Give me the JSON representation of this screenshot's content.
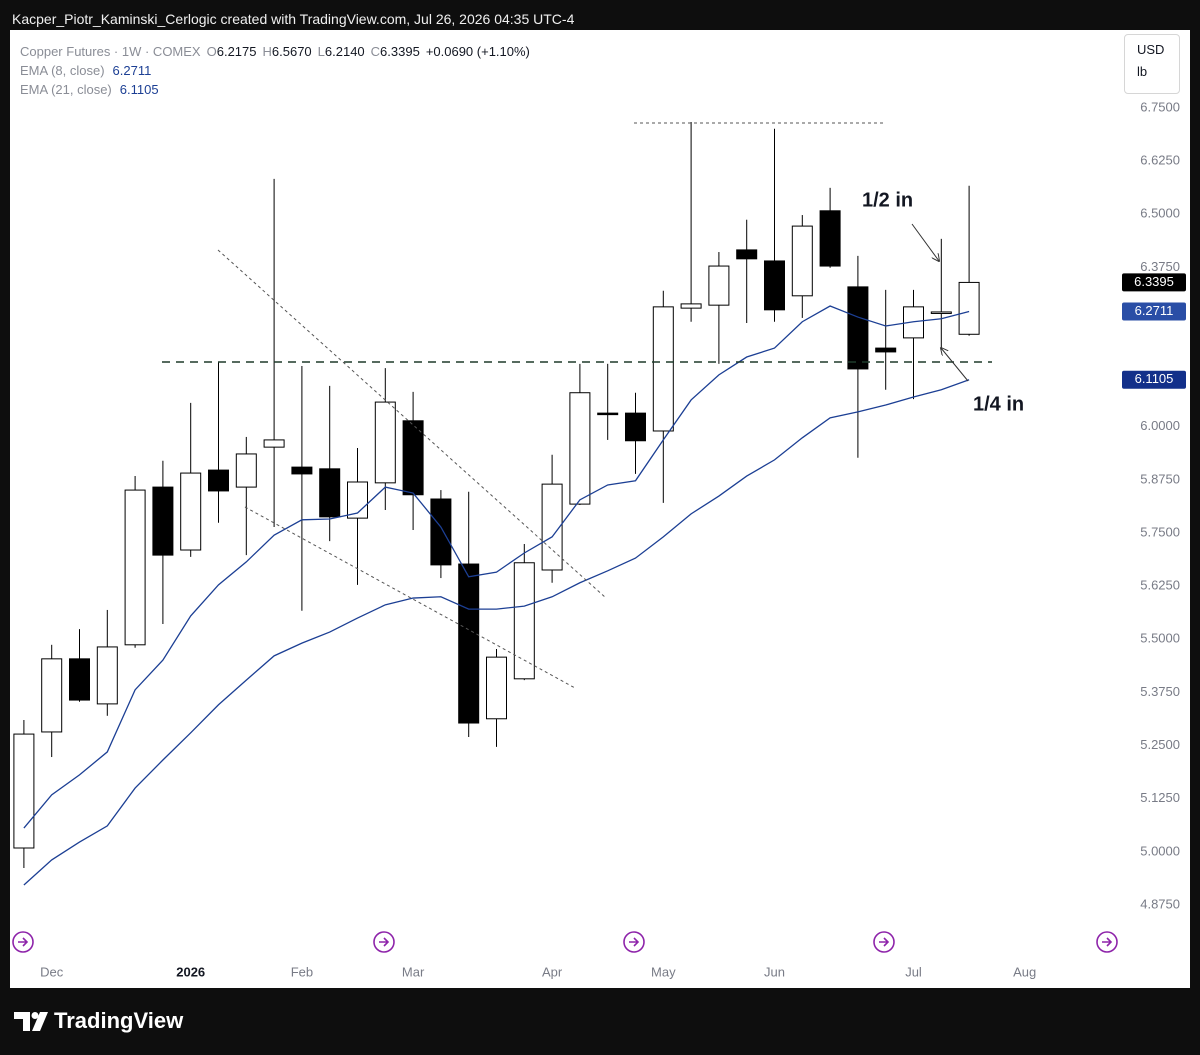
{
  "header": "Kacper_Piotr_Kaminski_Cerlogic created with TradingView.com, Jul 26, 2026 04:35 UTC-4",
  "footer": "TradingView",
  "chart_data": {
    "type": "candlestick",
    "title": "Copper Futures · 1W · COMEX",
    "ohlc_legend": [
      {
        "key": "O",
        "label": "6.2175"
      },
      {
        "key": "H",
        "label": "6.5670"
      },
      {
        "key": "L",
        "label": "6.2140"
      },
      {
        "key": "C",
        "label": "6.3395"
      }
    ],
    "change_label": "+0.0690 (+1.10%)",
    "currency": "USD",
    "unit": "lb",
    "categories": [
      null,
      "Dec",
      null,
      null,
      null,
      null,
      "2026",
      null,
      null,
      null,
      "Feb",
      null,
      null,
      null,
      "Mar",
      null,
      null,
      null,
      null,
      "Apr",
      null,
      null,
      null,
      "May",
      null,
      null,
      null,
      "Jun",
      null,
      null,
      null,
      null,
      "Jul",
      null,
      null,
      null,
      "Aug",
      null,
      null,
      null
    ],
    "open": [
      5.009,
      5.282,
      5.454,
      5.348,
      5.487,
      5.858,
      5.71,
      5.898,
      5.858,
      5.952,
      5.905,
      5.901,
      5.785,
      5.868,
      6.014,
      5.83,
      5.677,
      5.313,
      5.407,
      5.663,
      5.818,
      6.032,
      6.032,
      5.99,
      6.279,
      6.286,
      6.416,
      6.39,
      6.308,
      6.508,
      6.329,
      6.185,
      6.209,
      6.268,
      6.2175,
      null,
      null,
      null,
      null,
      null
    ],
    "high": [
      5.31,
      5.487,
      5.524,
      5.569,
      5.884,
      5.92,
      6.056,
      6.152,
      5.976,
      6.583,
      6.143,
      6.096,
      5.95,
      6.138,
      6.082,
      5.851,
      5.847,
      5.477,
      5.724,
      5.934,
      6.148,
      6.148,
      6.08,
      6.32,
      6.717,
      6.411,
      6.487,
      6.701,
      6.498,
      6.562,
      6.402,
      6.322,
      6.322,
      6.442,
      6.567,
      null,
      null,
      null,
      null,
      null
    ],
    "low": [
      4.962,
      5.223,
      5.353,
      5.32,
      5.48,
      5.536,
      5.694,
      5.774,
      5.698,
      5.764,
      5.567,
      5.731,
      5.628,
      5.804,
      5.757,
      5.644,
      5.27,
      5.247,
      5.404,
      5.633,
      5.816,
      5.969,
      5.889,
      5.821,
      6.247,
      6.148,
      6.244,
      6.247,
      6.256,
      6.374,
      5.927,
      6.087,
      6.065,
      6.181,
      6.214,
      null,
      null,
      null,
      null,
      null
    ],
    "close": [
      5.277,
      5.454,
      5.357,
      5.482,
      5.851,
      5.698,
      5.891,
      5.849,
      5.936,
      5.969,
      5.889,
      5.788,
      5.87,
      6.058,
      5.84,
      5.675,
      5.303,
      5.458,
      5.68,
      5.865,
      6.08,
      6.03,
      5.967,
      6.282,
      6.289,
      6.378,
      6.395,
      6.275,
      6.472,
      6.378,
      6.136,
      6.176,
      6.282,
      6.27,
      6.3395,
      null,
      null,
      null,
      null,
      null
    ],
    "up_color": "#ffffff",
    "down_color": "#000000",
    "edge_color": "#000000",
    "last_close_label": "6.3395",
    "last_close_label_color": "#000000",
    "series": [
      {
        "name": "EMA (8, close)",
        "color": "#1c3f94",
        "last_label": "6.2711",
        "label_color": "#2a4ea6",
        "values": [
          5.056,
          5.134,
          5.181,
          5.235,
          5.381,
          5.451,
          5.555,
          5.628,
          5.682,
          5.745,
          5.781,
          5.783,
          5.797,
          5.858,
          5.844,
          5.764,
          5.647,
          5.658,
          5.703,
          5.741,
          5.828,
          5.863,
          5.873,
          5.969,
          6.063,
          6.122,
          6.164,
          6.185,
          6.247,
          6.284,
          6.258,
          6.237,
          6.247,
          6.254,
          6.2711,
          null,
          null,
          null,
          null,
          null
        ]
      },
      {
        "name": "EMA (21, close)",
        "color": "#1c3f94",
        "last_label": "6.1105",
        "label_color": "#13308a",
        "values": [
          4.922,
          4.981,
          5.023,
          5.061,
          5.15,
          5.216,
          5.28,
          5.346,
          5.404,
          5.461,
          5.491,
          5.517,
          5.55,
          5.581,
          5.597,
          5.6,
          5.571,
          5.571,
          5.578,
          5.6,
          5.633,
          5.661,
          5.691,
          5.741,
          5.795,
          5.837,
          5.884,
          5.922,
          5.974,
          6.021,
          6.035,
          6.051,
          6.07,
          6.087,
          6.1105,
          null,
          null,
          null,
          null,
          null
        ]
      }
    ],
    "ylim": [
      4.75,
      6.93
    ],
    "yticks": [
      {
        "value": 4.875,
        "label": "4.8750"
      },
      {
        "value": 5,
        "label": "5.0000"
      },
      {
        "value": 5.125,
        "label": "5.1250"
      },
      {
        "value": 5.25,
        "label": "5.2500"
      },
      {
        "value": 5.375,
        "label": "5.3750"
      },
      {
        "value": 5.5,
        "label": "5.5000"
      },
      {
        "value": 5.625,
        "label": "5.6250"
      },
      {
        "value": 5.75,
        "label": "5.7500"
      },
      {
        "value": 5.875,
        "label": "5.8750"
      },
      {
        "value": 6,
        "label": "6.0000"
      },
      {
        "value": 6.375,
        "label": "6.3750"
      },
      {
        "value": 6.5,
        "label": "6.5000"
      },
      {
        "value": 6.625,
        "label": "6.6250"
      },
      {
        "value": 6.75,
        "label": "6.7500"
      }
    ],
    "grid": false,
    "annotations": [
      "1/2 in",
      "1/4 in"
    ]
  }
}
